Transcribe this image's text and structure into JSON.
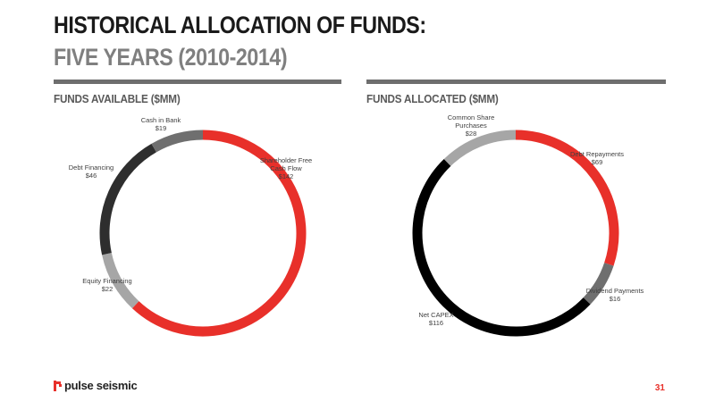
{
  "title": {
    "line1": "HISTORICAL ALLOCATION OF FUNDS:",
    "line2": "FIVE YEARS (2010-2014)"
  },
  "footer": {
    "brand": "pulse seismic",
    "page": "31"
  },
  "colors": {
    "red": "#e8302a",
    "dark": "#2e2e2e",
    "black": "#000000",
    "gray": "#6f6f6f",
    "light_gray": "#a6a6a6",
    "rule": "#6e6e6e"
  },
  "chart_data": [
    {
      "type": "pie",
      "title": "FUNDS AVAILABLE ($MM)",
      "slices": [
        {
          "label": [
            "Shareholder Free",
            "Cash Flow"
          ],
          "value_label": "$142",
          "value": 142,
          "color": "#e8302a"
        },
        {
          "label": [
            "Equity Financing"
          ],
          "value_label": "$22",
          "value": 22,
          "color": "#a6a6a6"
        },
        {
          "label": [
            "Debt Financing"
          ],
          "value_label": "$46",
          "value": 46,
          "color": "#2e2e2e"
        },
        {
          "label": [
            "Cash in Bank"
          ],
          "value_label": "$19",
          "value": 19,
          "color": "#6f6f6f"
        }
      ]
    },
    {
      "type": "pie",
      "title": "FUNDS ALLOCATED ($MM)",
      "slices": [
        {
          "label": [
            "Debt Repayments"
          ],
          "value_label": "$69",
          "value": 69,
          "color": "#e8302a"
        },
        {
          "label": [
            "Dividend Payments"
          ],
          "value_label": "$16",
          "value": 16,
          "color": "#6f6f6f"
        },
        {
          "label": [
            "Net CAPEX"
          ],
          "value_label": "$116",
          "value": 116,
          "color": "#000000"
        },
        {
          "label": [
            "Common Share",
            "Purchases"
          ],
          "value_label": "$28",
          "value": 28,
          "color": "#a6a6a6"
        }
      ]
    }
  ]
}
